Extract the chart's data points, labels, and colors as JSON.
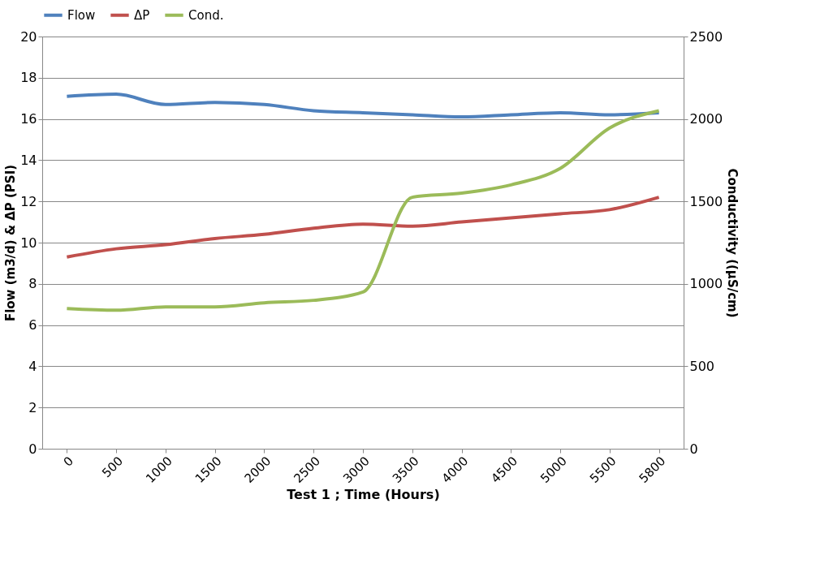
{
  "chart_data": {
    "type": "line",
    "xlabel": "Test 1 ; Time (Hours)",
    "ylabel": "Flow (m3/d) & ΔP (PSI)",
    "y2label": "Conductivity ((µS/cm)",
    "categories": [
      "0",
      "500",
      "1000",
      "1500",
      "2000",
      "2500",
      "3000",
      "3500",
      "4000",
      "4500",
      "5000",
      "5500",
      "5800"
    ],
    "series": [
      {
        "name": "Flow",
        "color": "#4f81bd",
        "values": [
          17.1,
          17.2,
          16.7,
          16.8,
          16.7,
          16.4,
          16.3,
          16.2,
          16.1,
          16.2,
          16.3,
          16.2,
          16.3
        ]
      },
      {
        "name": "ΔP",
        "color": "#c0504d",
        "values": [
          9.3,
          9.7,
          9.9,
          10.2,
          10.4,
          10.7,
          10.9,
          10.8,
          11.0,
          11.2,
          11.4,
          11.6,
          12.2
        ]
      },
      {
        "name": "Cond.",
        "color": "#9bbb59",
        "axis": "y2",
        "values": [
          850,
          840,
          860,
          860,
          885,
          900,
          950,
          1525,
          1550,
          1600,
          1700,
          1945,
          2050
        ]
      }
    ],
    "ylim": [
      0,
      20
    ],
    "yticks": [
      0,
      2,
      4,
      6,
      8,
      10,
      12,
      14,
      16,
      18,
      20
    ],
    "y2lim": [
      0,
      2500
    ],
    "y2ticks": [
      0,
      500,
      1000,
      1500,
      2000,
      2500
    ],
    "grid": "y",
    "legend": "top",
    "marker": "none",
    "line_style": "solid"
  }
}
